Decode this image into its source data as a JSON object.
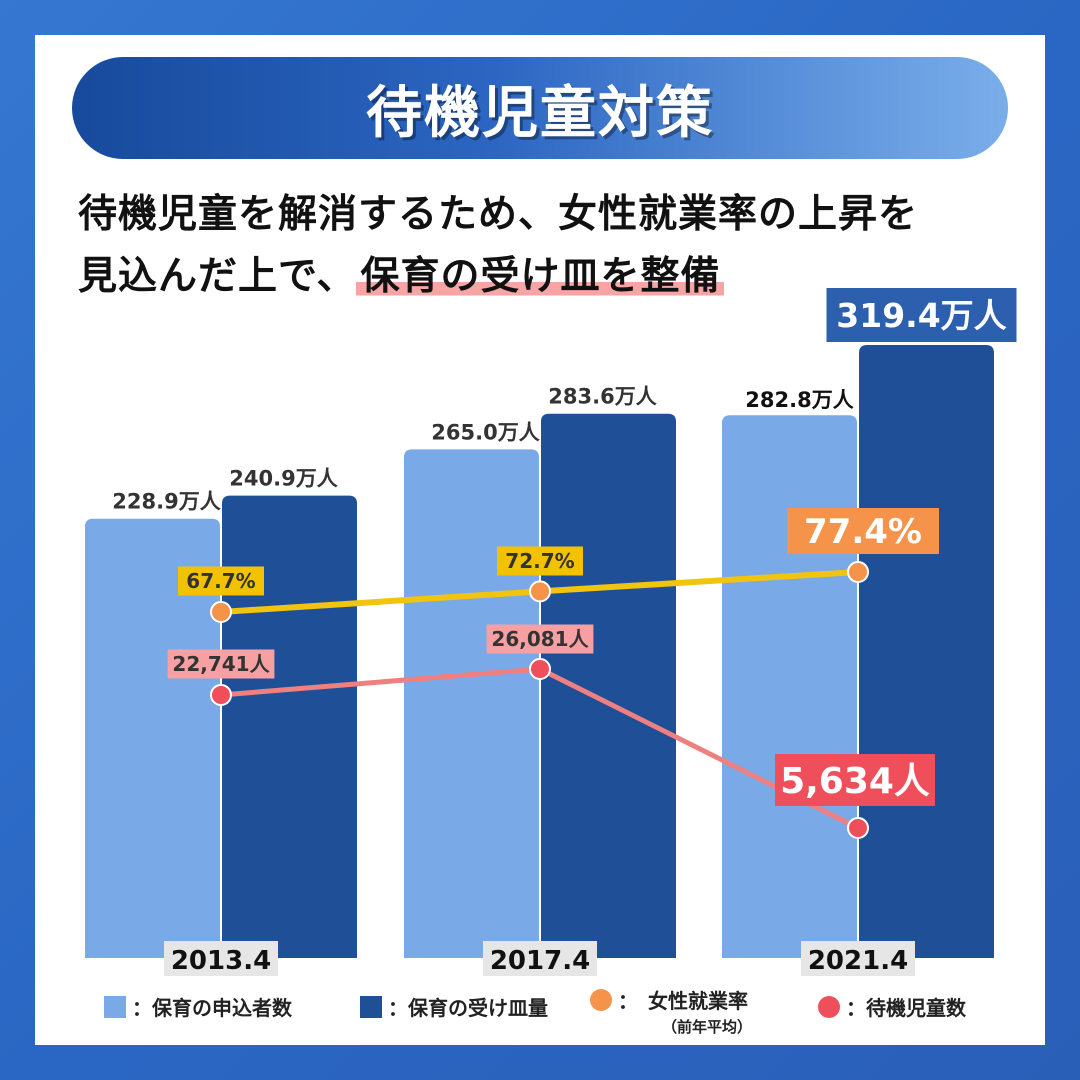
{
  "title": "待機児童対策",
  "subtitle": {
    "line1": "待機児童を解消するため、女性就業率の上昇を",
    "line2_plain": "見込んだ上で、",
    "line2_highlight": "保育の受け皿を整備"
  },
  "colors": {
    "applicants": "#7aa9e8",
    "capacity": "#1f4f97",
    "employment_line": "#f1c40f",
    "employment_marker": "#f5934a",
    "waiting_line": "#f08080",
    "waiting_marker": "#ef4f5a"
  },
  "chart_data": {
    "type": "bar",
    "categories": [
      "2013.4",
      "2017.4",
      "2021.4"
    ],
    "series": [
      {
        "name": "保育の申込者数",
        "type": "bar",
        "values": [
          228.9,
          265.0,
          282.8
        ],
        "labels": [
          "228.9万人",
          "265.0万人",
          "282.8万人"
        ]
      },
      {
        "name": "保育の受け皿量",
        "type": "bar",
        "values": [
          240.9,
          283.6,
          319.4
        ],
        "labels": [
          "240.9万人",
          "283.6万人",
          "319.4万人"
        ]
      },
      {
        "name": "女性就業率（前年平均）",
        "type": "line",
        "values": [
          67.7,
          72.7,
          77.4
        ],
        "labels": [
          "67.7%",
          "72.7%",
          "77.4%"
        ]
      },
      {
        "name": "待機児童数",
        "type": "line",
        "values": [
          22741,
          26081,
          5634
        ],
        "labels": [
          "22,741人",
          "26,081人",
          "5,634人"
        ]
      }
    ]
  },
  "legend": {
    "applicants": "：保育の申込者数",
    "capacity": "：保育の受け皿量",
    "employment": "：　女性就業率",
    "employment_note": "（前年平均）",
    "waiting": "：待機児童数"
  }
}
